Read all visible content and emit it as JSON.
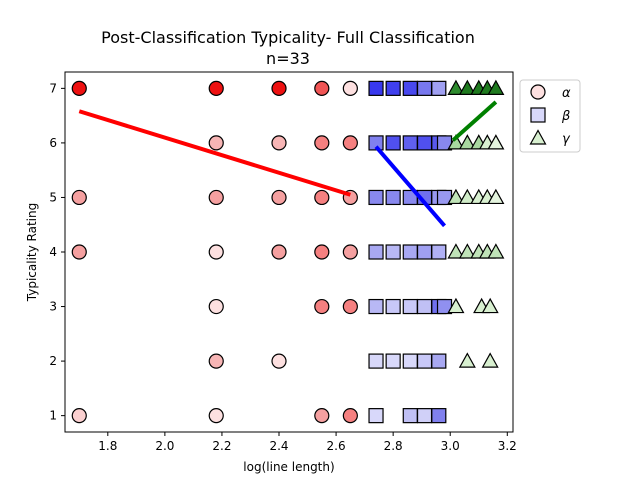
{
  "chart_data": {
    "type": "scatter",
    "title": "Post-Classification Typicality- Full Classification",
    "subtitle": "n=33",
    "xlabel": "log(line length)",
    "ylabel": "Typicality Rating",
    "xlim": [
      1.65,
      3.22
    ],
    "ylim": [
      0.7,
      7.3
    ],
    "xticks": [
      "1.8",
      "2.0",
      "2.2",
      "2.4",
      "2.6",
      "2.8",
      "3.0",
      "3.2"
    ],
    "yticks": [
      "1",
      "2",
      "3",
      "4",
      "5",
      "6",
      "7"
    ],
    "legend_position": "outside-top-right",
    "series": [
      {
        "name": "α",
        "marker": "circle",
        "points": [
          {
            "x": 1.7,
            "y": 7,
            "color": "#ee1111"
          },
          {
            "x": 1.7,
            "y": 5,
            "color": "#f5a0a0"
          },
          {
            "x": 1.7,
            "y": 4,
            "color": "#f5a0a0"
          },
          {
            "x": 1.7,
            "y": 1,
            "color": "#fbd0d0"
          },
          {
            "x": 2.18,
            "y": 7,
            "color": "#ee1111"
          },
          {
            "x": 2.18,
            "y": 6,
            "color": "#f7b5b5"
          },
          {
            "x": 2.18,
            "y": 5,
            "color": "#f5a0a0"
          },
          {
            "x": 2.18,
            "y": 4,
            "color": "#fde0e0"
          },
          {
            "x": 2.18,
            "y": 3,
            "color": "#fde0e0"
          },
          {
            "x": 2.18,
            "y": 2,
            "color": "#f7b5b5"
          },
          {
            "x": 2.18,
            "y": 1,
            "color": "#fde0e0"
          },
          {
            "x": 2.4,
            "y": 7,
            "color": "#ee1111"
          },
          {
            "x": 2.4,
            "y": 6,
            "color": "#f7b5b5"
          },
          {
            "x": 2.4,
            "y": 5,
            "color": "#f5a0a0"
          },
          {
            "x": 2.4,
            "y": 4,
            "color": "#f5a0a0"
          },
          {
            "x": 2.4,
            "y": 2,
            "color": "#fde0e0"
          },
          {
            "x": 2.55,
            "y": 7,
            "color": "#f05555"
          },
          {
            "x": 2.55,
            "y": 6,
            "color": "#f58080"
          },
          {
            "x": 2.55,
            "y": 5,
            "color": "#f58080"
          },
          {
            "x": 2.55,
            "y": 4,
            "color": "#f58080"
          },
          {
            "x": 2.55,
            "y": 3,
            "color": "#f58080"
          },
          {
            "x": 2.55,
            "y": 1,
            "color": "#f5a0a0"
          },
          {
            "x": 2.65,
            "y": 7,
            "color": "#fde0e0"
          },
          {
            "x": 2.65,
            "y": 6,
            "color": "#f58080"
          },
          {
            "x": 2.65,
            "y": 5,
            "color": "#f5a0a0"
          },
          {
            "x": 2.65,
            "y": 4,
            "color": "#f5a0a0"
          },
          {
            "x": 2.65,
            "y": 3,
            "color": "#f58080"
          },
          {
            "x": 2.65,
            "y": 1,
            "color": "#f58080"
          }
        ]
      },
      {
        "name": "β",
        "marker": "square",
        "points": [
          {
            "x": 2.74,
            "y": 7,
            "color": "#3838ee"
          },
          {
            "x": 2.74,
            "y": 6,
            "color": "#8080ee"
          },
          {
            "x": 2.74,
            "y": 5,
            "color": "#8888ee"
          },
          {
            "x": 2.74,
            "y": 4,
            "color": "#a8a8f2"
          },
          {
            "x": 2.74,
            "y": 3,
            "color": "#b8b8f5"
          },
          {
            "x": 2.74,
            "y": 2,
            "color": "#d8d8fa"
          },
          {
            "x": 2.74,
            "y": 1,
            "color": "#d8d8fa"
          },
          {
            "x": 2.8,
            "y": 7,
            "color": "#4040ee"
          },
          {
            "x": 2.8,
            "y": 6,
            "color": "#5050ee"
          },
          {
            "x": 2.8,
            "y": 5,
            "color": "#8888ee"
          },
          {
            "x": 2.8,
            "y": 4,
            "color": "#b8b8f5"
          },
          {
            "x": 2.8,
            "y": 3,
            "color": "#c8c8f8"
          },
          {
            "x": 2.8,
            "y": 2,
            "color": "#d8d8fa"
          },
          {
            "x": 2.86,
            "y": 7,
            "color": "#4848ee"
          },
          {
            "x": 2.86,
            "y": 6,
            "color": "#6060ee"
          },
          {
            "x": 2.86,
            "y": 5,
            "color": "#8888ee"
          },
          {
            "x": 2.86,
            "y": 4,
            "color": "#a8a8f2"
          },
          {
            "x": 2.86,
            "y": 3,
            "color": "#c8c8f8"
          },
          {
            "x": 2.86,
            "y": 2,
            "color": "#d8d8fa"
          },
          {
            "x": 2.86,
            "y": 1,
            "color": "#c0c0f5"
          },
          {
            "x": 2.91,
            "y": 7,
            "color": "#7878ee"
          },
          {
            "x": 2.91,
            "y": 6,
            "color": "#5050ee"
          },
          {
            "x": 2.91,
            "y": 5,
            "color": "#7070ee"
          },
          {
            "x": 2.91,
            "y": 4,
            "color": "#a0a0f2"
          },
          {
            "x": 2.91,
            "y": 3,
            "color": "#c0c0f5"
          },
          {
            "x": 2.91,
            "y": 2,
            "color": "#c8c8f8"
          },
          {
            "x": 2.91,
            "y": 1,
            "color": "#d0d0f8"
          },
          {
            "x": 2.96,
            "y": 7,
            "color": "#a0a0f2"
          },
          {
            "x": 2.96,
            "y": 6,
            "color": "#5858ee"
          },
          {
            "x": 2.96,
            "y": 5,
            "color": "#9898f0"
          },
          {
            "x": 2.96,
            "y": 4,
            "color": "#b0b0f5"
          },
          {
            "x": 2.96,
            "y": 3,
            "color": "#7070ee"
          },
          {
            "x": 2.96,
            "y": 2,
            "color": "#a8a8f2"
          },
          {
            "x": 2.96,
            "y": 1,
            "color": "#8080ee"
          },
          {
            "x": 2.98,
            "y": 6,
            "color": "#8888ee"
          },
          {
            "x": 2.98,
            "y": 5,
            "color": "#9898f0"
          },
          {
            "x": 2.98,
            "y": 3,
            "color": "#9090f0"
          }
        ]
      },
      {
        "name": "γ",
        "marker": "triangle",
        "points": [
          {
            "x": 3.02,
            "y": 7,
            "color": "#2e8b2e"
          },
          {
            "x": 3.02,
            "y": 6,
            "color": "#a8d8a0"
          },
          {
            "x": 3.02,
            "y": 5,
            "color": "#c0e4b8"
          },
          {
            "x": 3.02,
            "y": 4,
            "color": "#c0e4b8"
          },
          {
            "x": 3.02,
            "y": 3,
            "color": "#d8f0d0"
          },
          {
            "x": 3.06,
            "y": 7,
            "color": "#1f7a1f"
          },
          {
            "x": 3.06,
            "y": 6,
            "color": "#a8d8a0"
          },
          {
            "x": 3.06,
            "y": 5,
            "color": "#d0ecc8"
          },
          {
            "x": 3.06,
            "y": 4,
            "color": "#c0e4b8"
          },
          {
            "x": 3.06,
            "y": 2,
            "color": "#d8f0d0"
          },
          {
            "x": 3.1,
            "y": 7,
            "color": "#1f7a1f"
          },
          {
            "x": 3.1,
            "y": 6,
            "color": "#a8d8a0"
          },
          {
            "x": 3.1,
            "y": 5,
            "color": "#d8f0d0"
          },
          {
            "x": 3.1,
            "y": 4,
            "color": "#c0e4b8"
          },
          {
            "x": 3.11,
            "y": 3,
            "color": "#d8f0d0"
          },
          {
            "x": 3.13,
            "y": 7,
            "color": "#1f7a1f"
          },
          {
            "x": 3.13,
            "y": 6,
            "color": "#d8f0d0"
          },
          {
            "x": 3.13,
            "y": 5,
            "color": "#d8f0d0"
          },
          {
            "x": 3.13,
            "y": 4,
            "color": "#c0e4b8"
          },
          {
            "x": 3.14,
            "y": 3,
            "color": "#d8f0d0"
          },
          {
            "x": 3.14,
            "y": 2,
            "color": "#d8f0d0"
          },
          {
            "x": 3.16,
            "y": 7,
            "color": "#1f7a1f"
          },
          {
            "x": 3.16,
            "y": 6,
            "color": "#e4f4de"
          },
          {
            "x": 3.16,
            "y": 5,
            "color": "#e4f4de"
          },
          {
            "x": 3.16,
            "y": 4,
            "color": "#c0e4b8"
          }
        ]
      }
    ],
    "trend_lines": [
      {
        "color": "#ff0000",
        "x": [
          1.7,
          2.65
        ],
        "y": [
          6.58,
          5.05
        ]
      },
      {
        "color": "#0000ff",
        "x": [
          2.74,
          2.98
        ],
        "y": [
          5.93,
          4.48
        ]
      },
      {
        "color": "#008000",
        "x": [
          3.01,
          3.16
        ],
        "y": [
          6.05,
          6.75
        ]
      }
    ],
    "legend": [
      {
        "label": "α",
        "marker": "circle",
        "fill": "#fde0e0"
      },
      {
        "label": "β",
        "marker": "square",
        "fill": "#d8d8fa"
      },
      {
        "label": "γ",
        "marker": "triangle",
        "fill": "#d8f0d0"
      }
    ]
  }
}
